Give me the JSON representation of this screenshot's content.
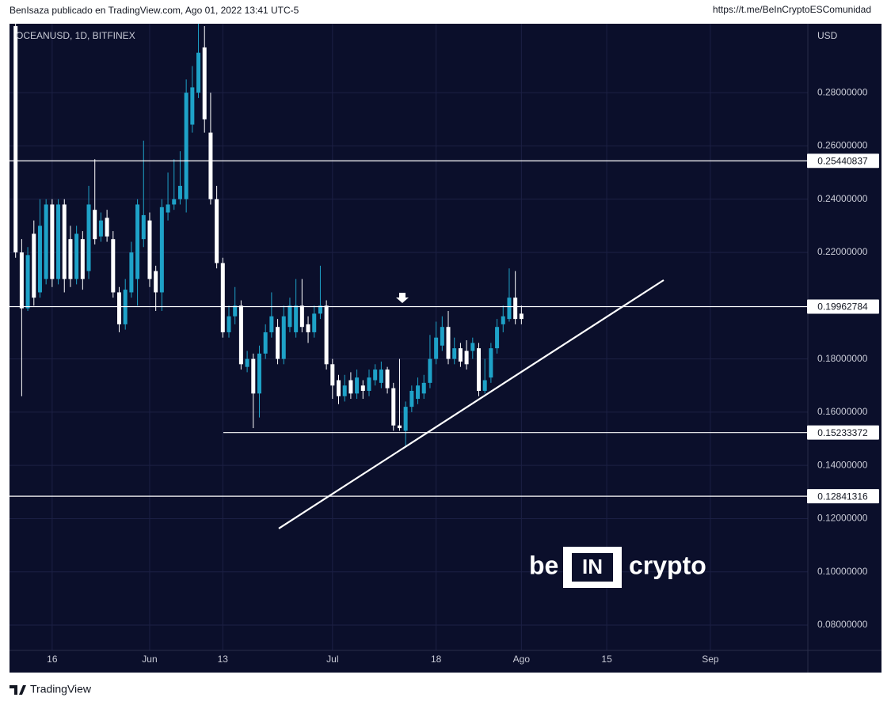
{
  "chart_data": {
    "type": "candlestick",
    "header": "BenIsaza publicado en TradingView.com, Ago 01, 2022 13:41 UTC-5",
    "link": "https://t.me/BeInCryptoESComunidad",
    "symbol": "OCEANUSD, 1D, BITFINEX",
    "currency": "USD",
    "footer": "TradingView",
    "watermark": {
      "left": "be",
      "middle": "IN",
      "right": "crypto"
    },
    "up_color": "#1ea2c8",
    "down_color": "#ffffff",
    "level_color": "#ffffff",
    "trendline_color": "#ffffff",
    "grid": true,
    "categories": [
      null,
      null,
      null,
      null,
      null,
      null,
      "16",
      null,
      null,
      null,
      null,
      null,
      null,
      null,
      null,
      null,
      null,
      null,
      null,
      null,
      null,
      null,
      "Jun",
      null,
      null,
      null,
      null,
      null,
      null,
      null,
      null,
      null,
      null,
      null,
      "13",
      null,
      null,
      null,
      null,
      null,
      null,
      null,
      null,
      null,
      null,
      null,
      null,
      null,
      null,
      null,
      null,
      null,
      "Jul",
      null,
      null,
      null,
      null,
      null,
      null,
      null,
      null,
      null,
      null,
      null,
      null,
      null,
      null,
      null,
      null,
      "18",
      null,
      null,
      null,
      null,
      null,
      null,
      null,
      null,
      null,
      null,
      null,
      null,
      null,
      "Ago",
      null,
      null,
      null,
      null,
      null,
      null,
      null,
      null,
      null,
      null,
      null,
      null,
      null,
      "15",
      null,
      null,
      null,
      null,
      null,
      null,
      null,
      null,
      null,
      null,
      null,
      null,
      null,
      null,
      null,
      null,
      "Sep",
      null,
      null,
      null,
      null,
      null,
      null,
      null,
      null,
      null,
      null,
      null,
      null,
      null,
      null,
      null
    ],
    "open": [
      0.305,
      0.22,
      0.199,
      0.227,
      0.205,
      0.21,
      0.238,
      0.21,
      0.238,
      0.225,
      0.21,
      0.225,
      0.213,
      0.236,
      0.226,
      0.233,
      0.225,
      0.205,
      0.193,
      0.205,
      0.21,
      0.225,
      0.232,
      0.213,
      0.205,
      0.235,
      0.238,
      0.24,
      0.24,
      0.268,
      0.28,
      0.297,
      0.265,
      0.24,
      0.216,
      0.19,
      0.196,
      0.2,
      0.177,
      0.18,
      0.167,
      0.182,
      0.19,
      0.192,
      0.18,
      0.192,
      0.19,
      0.2,
      0.193,
      0.19,
      0.197,
      0.2,
      0.178,
      0.172,
      0.166,
      0.172,
      0.167,
      0.17,
      0.168,
      0.172,
      0.171,
      0.176,
      0.169,
      0.155,
      0.153,
      0.162,
      0.165,
      0.167,
      0.171,
      0.18,
      0.185,
      0.192,
      0.18,
      0.184,
      0.183,
      0.183,
      0.184,
      0.168,
      0.173,
      0.184,
      0.193,
      0.195,
      0.203,
      0.197,
      null,
      null,
      null,
      null,
      null,
      null,
      null,
      null,
      null,
      null,
      null,
      null,
      null,
      null,
      null,
      null,
      null,
      null,
      null,
      null,
      null,
      null,
      null,
      null,
      null,
      null,
      null,
      null,
      null,
      null,
      null,
      null,
      null,
      null,
      null,
      null,
      null,
      null,
      null,
      null,
      null,
      null,
      null,
      null,
      null,
      null
    ],
    "high": [
      0.31,
      0.225,
      0.222,
      0.232,
      0.24,
      0.24,
      0.24,
      0.24,
      0.24,
      0.23,
      0.23,
      0.228,
      0.245,
      0.255,
      0.235,
      0.236,
      0.228,
      0.207,
      0.21,
      0.224,
      0.24,
      0.262,
      0.235,
      0.215,
      0.24,
      0.25,
      0.255,
      0.258,
      0.285,
      0.29,
      0.306,
      0.305,
      0.28,
      0.245,
      0.218,
      0.2,
      0.207,
      0.202,
      0.183,
      0.182,
      0.185,
      0.193,
      0.205,
      0.195,
      0.2,
      0.203,
      0.21,
      0.21,
      0.196,
      0.2,
      0.215,
      0.202,
      0.18,
      0.174,
      0.174,
      0.175,
      0.176,
      0.172,
      0.176,
      0.178,
      0.179,
      0.177,
      0.171,
      0.18,
      0.164,
      0.17,
      0.173,
      0.174,
      0.189,
      0.194,
      0.196,
      0.198,
      0.188,
      0.186,
      0.187,
      0.188,
      0.186,
      0.18,
      0.186,
      0.195,
      0.2,
      0.214,
      0.213,
      0.2,
      null,
      null,
      null,
      null,
      null,
      null,
      null,
      null,
      null,
      null,
      null,
      null,
      null,
      null,
      null,
      null,
      null,
      null,
      null,
      null,
      null,
      null,
      null,
      null,
      null,
      null,
      null,
      null,
      null,
      null,
      null,
      null,
      null,
      null,
      null,
      null,
      null,
      null,
      null,
      null,
      null,
      null,
      null,
      null,
      null,
      null
    ],
    "low": [
      0.218,
      0.166,
      0.198,
      0.2,
      0.203,
      0.208,
      0.207,
      0.208,
      0.205,
      0.207,
      0.208,
      0.206,
      0.21,
      0.223,
      0.224,
      0.224,
      0.203,
      0.19,
      0.191,
      0.203,
      0.2,
      0.222,
      0.207,
      0.198,
      0.198,
      0.232,
      0.236,
      0.238,
      0.235,
      0.265,
      0.278,
      0.265,
      0.238,
      0.214,
      0.188,
      0.188,
      0.193,
      0.176,
      0.175,
      0.154,
      0.158,
      0.18,
      0.188,
      0.178,
      0.178,
      0.19,
      0.188,
      0.19,
      0.186,
      0.188,
      0.195,
      0.176,
      0.165,
      0.163,
      0.164,
      0.165,
      0.165,
      0.165,
      0.166,
      0.17,
      0.169,
      0.167,
      0.153,
      0.153,
      0.147,
      0.16,
      0.163,
      0.165,
      0.169,
      0.178,
      0.183,
      0.178,
      0.178,
      0.177,
      0.176,
      0.18,
      0.166,
      0.167,
      0.171,
      0.182,
      0.19,
      0.194,
      0.193,
      0.193,
      null,
      null,
      null,
      null,
      null,
      null,
      null,
      null,
      null,
      null,
      null,
      null,
      null,
      null,
      null,
      null,
      null,
      null,
      null,
      null,
      null,
      null,
      null,
      null,
      null,
      null,
      null,
      null,
      null,
      null,
      null,
      null,
      null,
      null,
      null,
      null,
      null,
      null,
      null,
      null,
      null,
      null,
      null,
      null,
      null,
      null
    ],
    "close": [
      0.22,
      0.199,
      0.219,
      0.203,
      0.23,
      0.238,
      0.21,
      0.238,
      0.21,
      0.21,
      0.227,
      0.21,
      0.238,
      0.225,
      0.232,
      0.226,
      0.205,
      0.193,
      0.206,
      0.22,
      0.238,
      0.234,
      0.21,
      0.205,
      0.237,
      0.238,
      0.24,
      0.245,
      0.28,
      0.282,
      0.295,
      0.27,
      0.24,
      0.216,
      0.19,
      0.196,
      0.2,
      0.178,
      0.18,
      0.167,
      0.182,
      0.19,
      0.196,
      0.18,
      0.196,
      0.2,
      0.2,
      0.192,
      0.19,
      0.197,
      0.2,
      0.178,
      0.17,
      0.166,
      0.17,
      0.167,
      0.173,
      0.168,
      0.173,
      0.176,
      0.176,
      0.169,
      0.155,
      0.154,
      0.162,
      0.168,
      0.17,
      0.171,
      0.18,
      0.188,
      0.192,
      0.18,
      0.184,
      0.179,
      0.178,
      0.186,
      0.168,
      0.172,
      0.184,
      0.192,
      0.196,
      0.203,
      0.195,
      0.195,
      null,
      null,
      null,
      null,
      null,
      null,
      null,
      null,
      null,
      null,
      null,
      null,
      null,
      null,
      null,
      null,
      null,
      null,
      null,
      null,
      null,
      null,
      null,
      null,
      null,
      null,
      null,
      null,
      null,
      null,
      null,
      null,
      null,
      null,
      null,
      null,
      null,
      null,
      null,
      null,
      null,
      null,
      null,
      null,
      null,
      null
    ],
    "levels": [
      0.25440837,
      0.19962784,
      0.15233372,
      0.12841316
    ],
    "trendline": [
      0.1163,
      0.2096
    ],
    "ylim": [
      0.0705,
      0.3059
    ],
    "yticks": [
      {
        "value": 0.08,
        "label": "0.08000000"
      },
      {
        "value": 0.1,
        "label": "0.10000000"
      },
      {
        "value": 0.12,
        "label": "0.12000000"
      },
      {
        "value": 0.14,
        "label": "0.14000000"
      },
      {
        "value": 0.16,
        "label": "0.16000000"
      },
      {
        "value": 0.18,
        "label": "0.18000000"
      },
      {
        "value": 0.2,
        "label": "0.20000000"
      },
      {
        "value": 0.22,
        "label": "0.22000000"
      },
      {
        "value": 0.24,
        "label": "0.24000000"
      },
      {
        "value": 0.26,
        "label": "0.26000000"
      },
      {
        "value": 0.28,
        "label": "0.28000000"
      }
    ]
  }
}
